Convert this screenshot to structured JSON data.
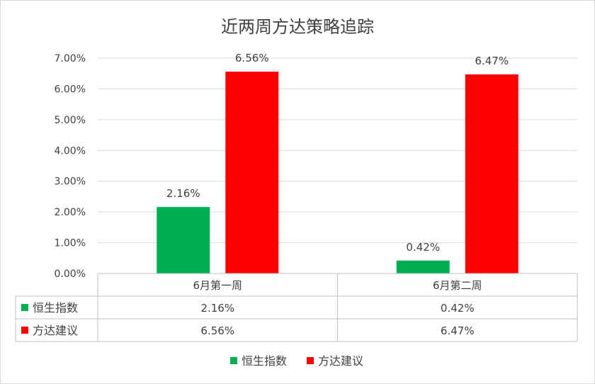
{
  "chart_data": {
    "type": "bar",
    "title": "近两周方达策略追踪",
    "categories": [
      "6月第一周",
      "6月第二周"
    ],
    "series": [
      {
        "name": "恒生指数",
        "values": [
          2.16,
          0.42
        ],
        "labels": [
          "2.16%",
          "0.42%"
        ],
        "color": "#00B050"
      },
      {
        "name": "方达建议",
        "values": [
          6.56,
          6.47
        ],
        "labels": [
          "6.56%",
          "6.47%"
        ],
        "color": "#FF0000"
      }
    ],
    "ylim": [
      0,
      7
    ],
    "ytick_values": [
      0,
      1,
      2,
      3,
      4,
      5,
      6,
      7
    ],
    "ytick_labels": [
      "0.00%",
      "1.00%",
      "2.00%",
      "3.00%",
      "4.00%",
      "5.00%",
      "6.00%",
      "7.00%"
    ],
    "grid": true,
    "legend_position": "bottom",
    "data_table": true,
    "gridline_color": "#D9D9D9",
    "border_color": "#BFBFBF"
  }
}
